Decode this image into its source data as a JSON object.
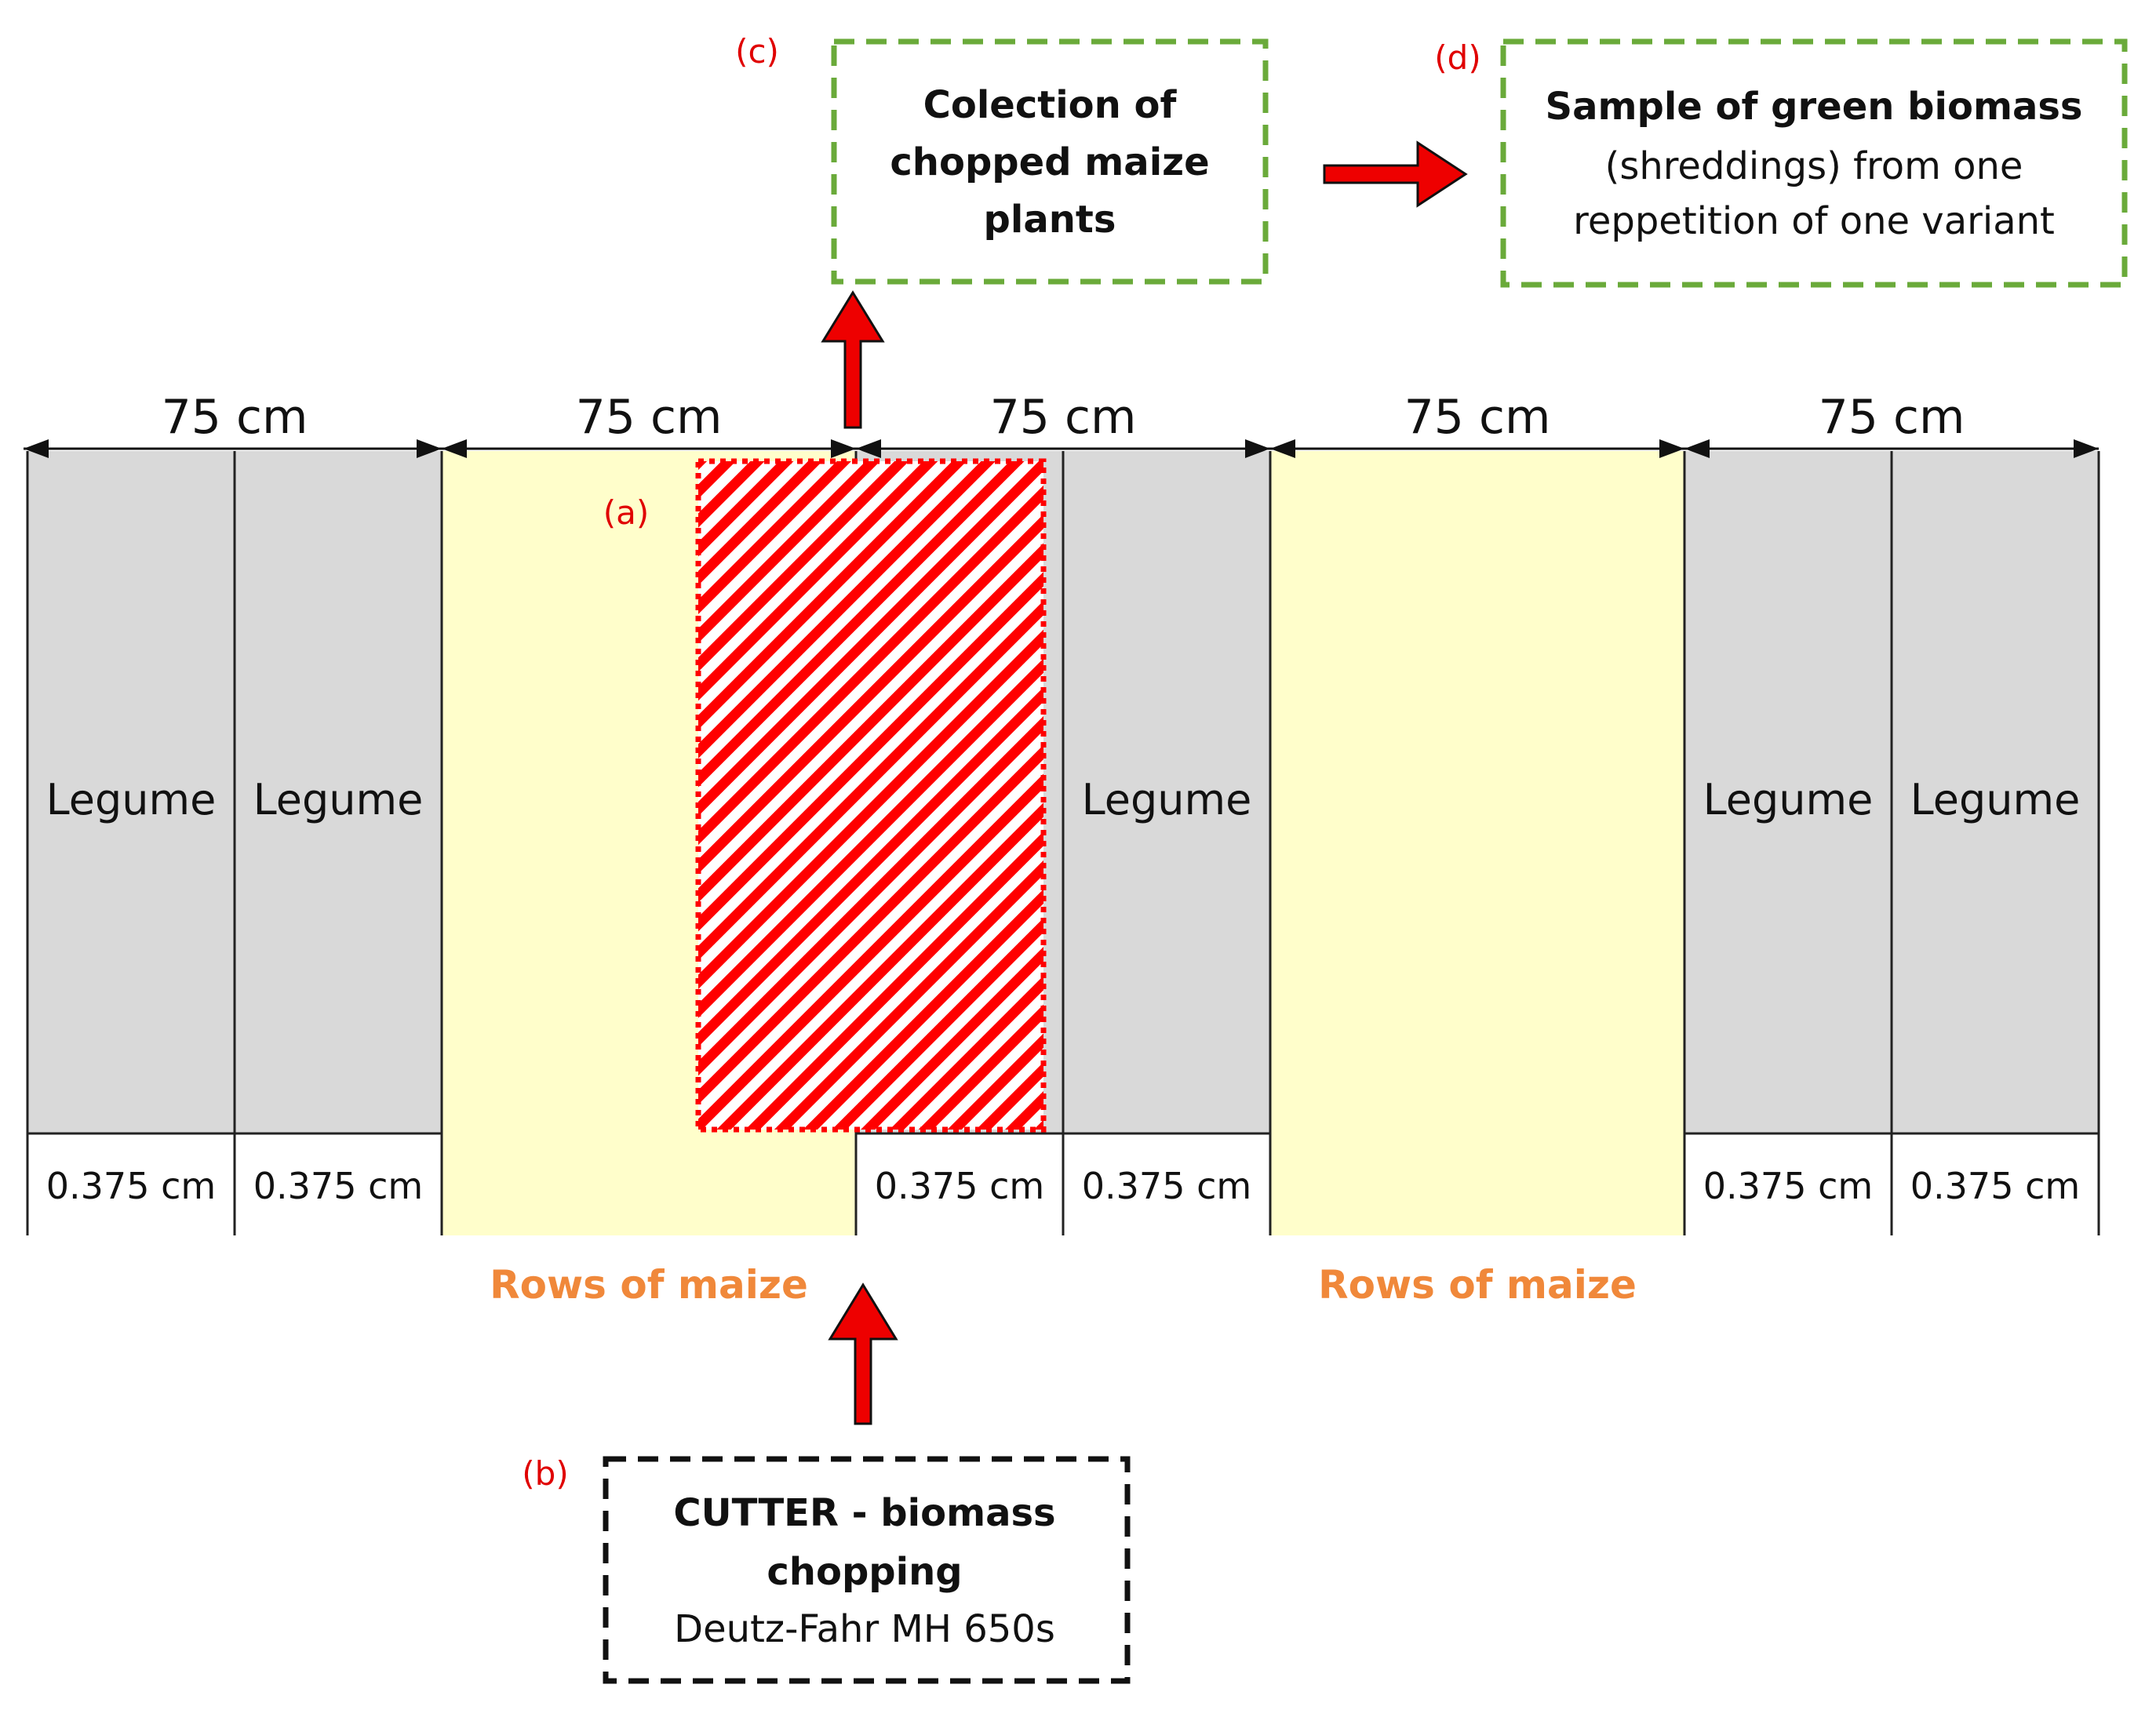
{
  "colors": {
    "legume_fill": "#d9d9d9",
    "maize_fill": "#fffecb",
    "cut_area": "#ff0000",
    "arrow_fill": "#ee0000",
    "green_dash": "#6aaa3a",
    "maize_label": "#f0883a",
    "tag_label": "#e00000",
    "text": "#111111"
  },
  "dimension_labels": [
    "75 cm",
    "75 cm",
    "75 cm",
    "75 cm",
    "75 cm"
  ],
  "columns": [
    {
      "type": "legume",
      "label": "Legume",
      "width_label": "0.375 cm"
    },
    {
      "type": "legume",
      "label": "Legume",
      "width_label": "0.375 cm"
    },
    {
      "type": "maize"
    },
    {
      "type": "maize"
    },
    {
      "type": "legume",
      "label": "",
      "width_label": "0.375 cm"
    },
    {
      "type": "legume",
      "label": "Legume",
      "width_label": "0.375 cm"
    },
    {
      "type": "maize"
    },
    {
      "type": "maize"
    },
    {
      "type": "legume",
      "label": "Legume",
      "width_label": "0.375 cm"
    },
    {
      "type": "legume",
      "label": "Legume",
      "width_label": "0.375 cm"
    }
  ],
  "maize_labels": [
    "Rows of maize",
    "Rows of maize"
  ],
  "tags": {
    "a": "(a)",
    "b": "(b)",
    "c": "(c)",
    "d": "(d)"
  },
  "box_b": {
    "line1": "CUTTER - biomass",
    "line2": "chopping",
    "line3": "Deutz-Fahr MH 650s"
  },
  "box_c": {
    "line1": "Colection of",
    "line2": "chopped maize",
    "line3": "plants"
  },
  "box_d": {
    "line1": "Sample of green biomass",
    "line2": "(shreddings)  from one",
    "line3": "reppetition  of one variant"
  }
}
